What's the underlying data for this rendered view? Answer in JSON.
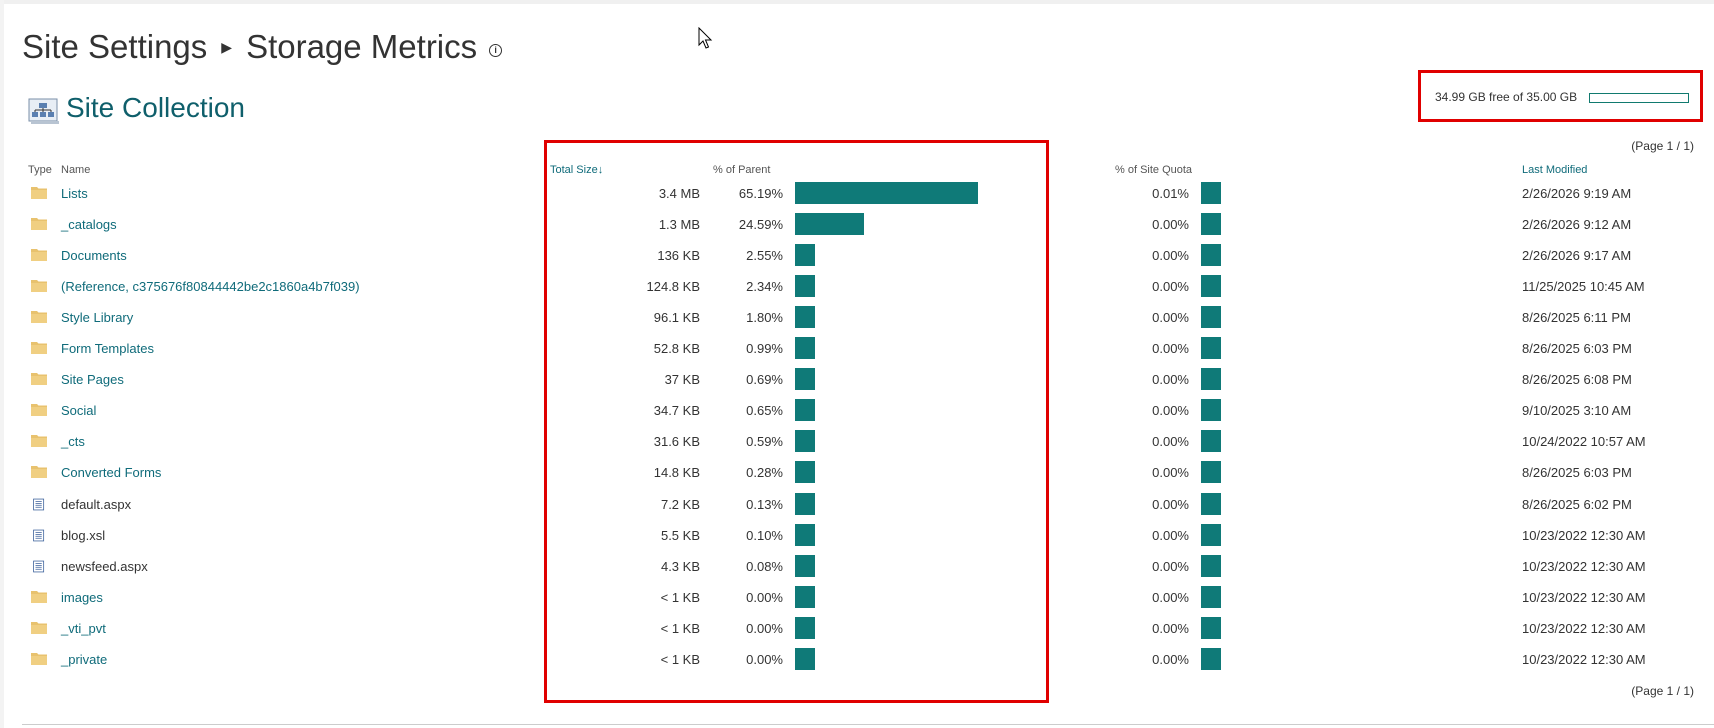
{
  "breadcrumb": {
    "parent": "Site Settings",
    "current": "Storage Metrics"
  },
  "section_title": "Site Collection",
  "quota": {
    "text": "34.99 GB free of 35.00 GB",
    "used_fraction": 0.0003
  },
  "paging_top": "(Page 1 / 1)",
  "paging_bottom": "(Page 1 / 1)",
  "columns": {
    "type": "Type",
    "name": "Name",
    "total_size": "Total Size",
    "pct_parent": "% of Parent",
    "pct_quota": "% of Site Quota",
    "last_modified": "Last Modified"
  },
  "colors": {
    "accent": "#0f7a78",
    "link": "#0f6b7a",
    "highlight": "#e00000"
  },
  "rows": [
    {
      "type": "folder-icon",
      "name": "Lists",
      "size": "3.4 MB",
      "pct_parent": "65.19%",
      "parent_fraction": 0.6519,
      "pct_quota": "0.01%",
      "modified": "2/26/2026 9:19 AM"
    },
    {
      "type": "folder-icon",
      "name": "_catalogs",
      "size": "1.3 MB",
      "pct_parent": "24.59%",
      "parent_fraction": 0.2459,
      "pct_quota": "0.00%",
      "modified": "2/26/2026 9:12 AM"
    },
    {
      "type": "folder-icon",
      "name": "Documents",
      "size": "136 KB",
      "pct_parent": "2.55%",
      "parent_fraction": 0.0255,
      "pct_quota": "0.00%",
      "modified": "2/26/2026 9:17 AM"
    },
    {
      "type": "folder-icon",
      "name": "(Reference, c375676f80844442be2c1860a4b7f039)",
      "size": "124.8 KB",
      "pct_parent": "2.34%",
      "parent_fraction": 0.0234,
      "pct_quota": "0.00%",
      "modified": "11/25/2025 10:45 AM"
    },
    {
      "type": "folder-icon",
      "name": "Style Library",
      "size": "96.1 KB",
      "pct_parent": "1.80%",
      "parent_fraction": 0.018,
      "pct_quota": "0.00%",
      "modified": "8/26/2025 6:11 PM"
    },
    {
      "type": "folder-icon",
      "name": "Form Templates",
      "size": "52.8 KB",
      "pct_parent": "0.99%",
      "parent_fraction": 0.0099,
      "pct_quota": "0.00%",
      "modified": "8/26/2025 6:03 PM"
    },
    {
      "type": "folder-icon",
      "name": "Site Pages",
      "size": "37 KB",
      "pct_parent": "0.69%",
      "parent_fraction": 0.0069,
      "pct_quota": "0.00%",
      "modified": "8/26/2025 6:08 PM"
    },
    {
      "type": "folder-icon",
      "name": "Social",
      "size": "34.7 KB",
      "pct_parent": "0.65%",
      "parent_fraction": 0.0065,
      "pct_quota": "0.00%",
      "modified": "9/10/2025 3:10 AM"
    },
    {
      "type": "folder-icon",
      "name": "_cts",
      "size": "31.6 KB",
      "pct_parent": "0.59%",
      "parent_fraction": 0.0059,
      "pct_quota": "0.00%",
      "modified": "10/24/2022 10:57 AM"
    },
    {
      "type": "folder-icon",
      "name": "Converted Forms",
      "size": "14.8 KB",
      "pct_parent": "0.28%",
      "parent_fraction": 0.0028,
      "pct_quota": "0.00%",
      "modified": "8/26/2025 6:03 PM"
    },
    {
      "type": "file-icon",
      "name": "default.aspx",
      "size": "7.2 KB",
      "pct_parent": "0.13%",
      "parent_fraction": 0.0013,
      "pct_quota": "0.00%",
      "modified": "8/26/2025 6:02 PM"
    },
    {
      "type": "file-icon",
      "name": "blog.xsl",
      "size": "5.5 KB",
      "pct_parent": "0.10%",
      "parent_fraction": 0.001,
      "pct_quota": "0.00%",
      "modified": "10/23/2022 12:30 AM"
    },
    {
      "type": "file-icon",
      "name": "newsfeed.aspx",
      "size": "4.3 KB",
      "pct_parent": "0.08%",
      "parent_fraction": 0.0008,
      "pct_quota": "0.00%",
      "modified": "10/23/2022 12:30 AM"
    },
    {
      "type": "folder-icon",
      "name": "images",
      "size": "< 1 KB",
      "pct_parent": "0.00%",
      "parent_fraction": 0,
      "pct_quota": "0.00%",
      "modified": "10/23/2022 12:30 AM"
    },
    {
      "type": "folder-icon",
      "name": "_vti_pvt",
      "size": "< 1 KB",
      "pct_parent": "0.00%",
      "parent_fraction": 0,
      "pct_quota": "0.00%",
      "modified": "10/23/2022 12:30 AM"
    },
    {
      "type": "folder-icon",
      "name": "_private",
      "size": "< 1 KB",
      "pct_parent": "0.00%",
      "parent_fraction": 0,
      "pct_quota": "0.00%",
      "modified": "10/23/2022 12:30 AM"
    }
  ]
}
